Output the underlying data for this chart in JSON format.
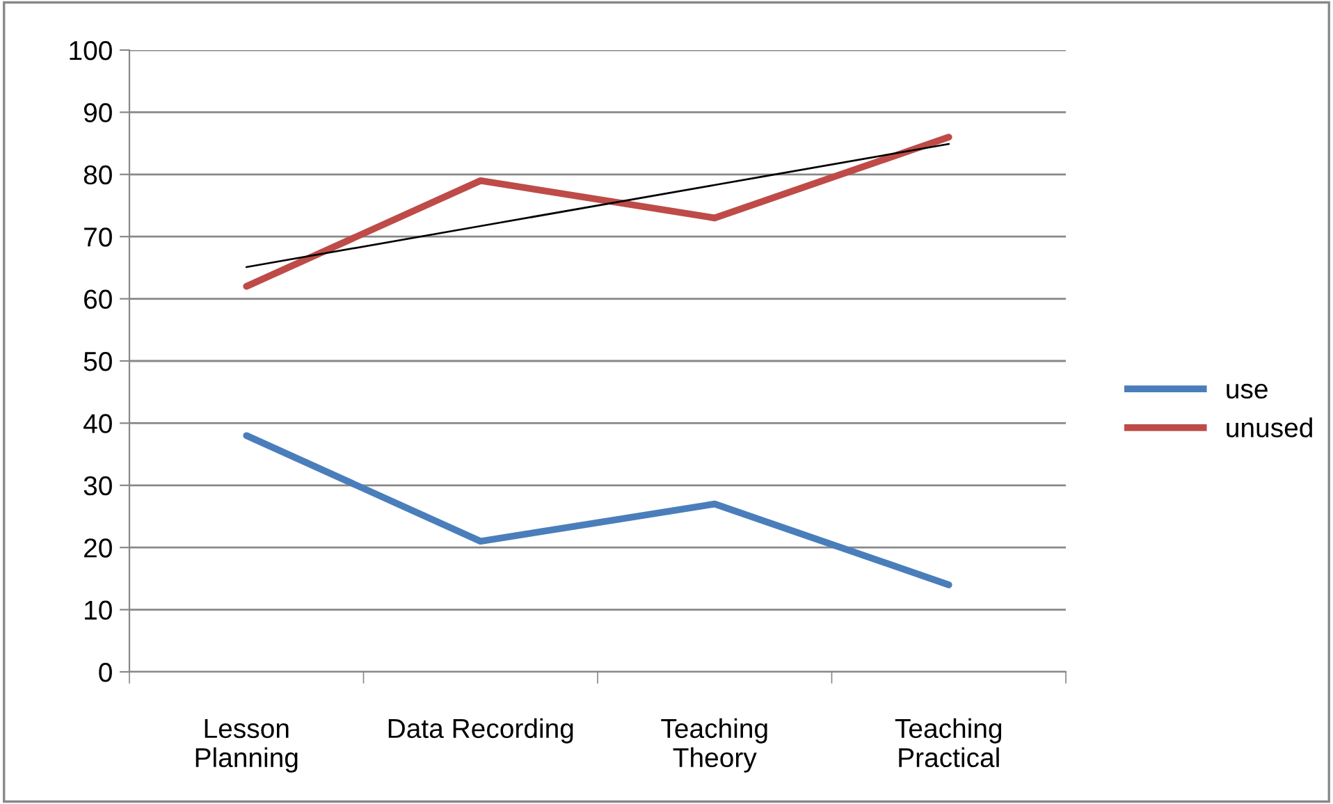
{
  "chart_data": {
    "type": "line",
    "categories": [
      "Lesson\nPlanning",
      "Data Recording",
      "Teaching\nTheory",
      "Teaching\nPractical"
    ],
    "series": [
      {
        "name": "use",
        "color": "#4a7ebb",
        "values": [
          38,
          21,
          27,
          14
        ]
      },
      {
        "name": "unused",
        "color": "#be4b48",
        "values": [
          62,
          79,
          73,
          86
        ]
      },
      {
        "type": "line",
        "color": "#000000",
        "values": [
          65.1,
          71.7,
          78.3,
          84.9
        ]
      }
    ],
    "ylim": [
      0,
      100
    ],
    "yticks": [
      0,
      10,
      20,
      30,
      40,
      50,
      60,
      70,
      80,
      90,
      100
    ],
    "grid": "y",
    "legend": "right",
    "marker": "none",
    "line_style": "solid"
  }
}
